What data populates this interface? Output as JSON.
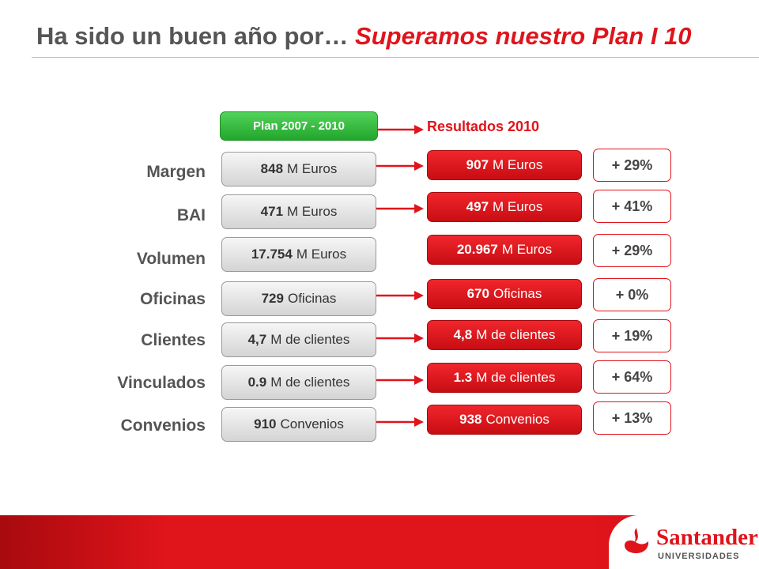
{
  "header": {
    "title_prefix": "Ha sido un buen año por…",
    "title_highlight": "Superamos nuestro Plan I 10"
  },
  "columns": {
    "plan_label": "Plan 2007 - 2010",
    "results_label": "Resultados 2010"
  },
  "rows": [
    {
      "label": "Margen",
      "plan_num": "848",
      "plan_unit": "M Euros",
      "result_num": "907",
      "result_unit": "M Euros",
      "change": "+ 29%"
    },
    {
      "label": "BAI",
      "plan_num": "471",
      "plan_unit": "M Euros",
      "result_num": "497",
      "result_unit": "M Euros",
      "change": "+ 41%"
    },
    {
      "label": "Volumen",
      "plan_num": "17.754",
      "plan_unit": "M Euros",
      "result_num": "20.967",
      "result_unit": "M Euros",
      "change": "+ 29%"
    },
    {
      "label": "Oficinas",
      "plan_num": "729",
      "plan_unit": "Oficinas",
      "result_num": "670",
      "result_unit": "Oficinas",
      "change": "+ 0%"
    },
    {
      "label": "Clientes",
      "plan_num": "4,7",
      "plan_unit": "M de clientes",
      "result_num": "4,8",
      "result_unit": "M de clientes",
      "change": "+ 19%"
    },
    {
      "label": "Vinculados",
      "plan_num": "0.9",
      "plan_unit": "M de clientes",
      "result_num": "1.3",
      "result_unit": "M de clientes",
      "change": "+ 64%"
    },
    {
      "label": "Convenios",
      "plan_num": "910",
      "plan_unit": "Convenios",
      "result_num": "938",
      "result_unit": "Convenios",
      "change": "+ 13%"
    }
  ],
  "footer": {
    "brand": "Santander",
    "brand_sub": "UNIVERSIDADES"
  },
  "colors": {
    "accent_red": "#e0141b",
    "plan_green": "#2bb534",
    "label_gray": "#555555"
  },
  "icons": [
    "arrow-right-icon",
    "santander-flame-icon"
  ]
}
